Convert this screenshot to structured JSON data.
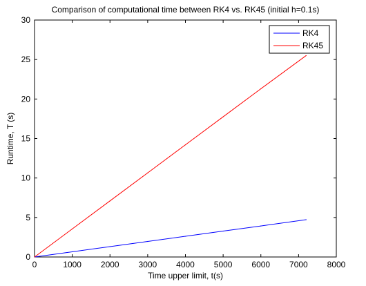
{
  "chart_data": {
    "type": "line",
    "title": "Comparison of computational time between RK4 vs. RK45 (initial h=0.1s)",
    "xlabel": "Time upper limit, t(s)",
    "ylabel": "Runtime, T (s)",
    "xlim": [
      0,
      8000
    ],
    "ylim": [
      0,
      30
    ],
    "xticks": [
      0,
      1000,
      2000,
      3000,
      4000,
      5000,
      6000,
      7000,
      8000
    ],
    "yticks": [
      0,
      5,
      10,
      15,
      20,
      25,
      30
    ],
    "grid": false,
    "legend_position": "top-right",
    "series": [
      {
        "name": "RK4",
        "color": "#0000ff",
        "x": [
          0,
          1000,
          2000,
          3000,
          4000,
          5000,
          6000,
          7200
        ],
        "y": [
          0,
          0.66,
          1.31,
          1.97,
          2.62,
          3.28,
          3.93,
          4.72
        ]
      },
      {
        "name": "RK45",
        "color": "#ff0000",
        "x": [
          0,
          1000,
          2000,
          3000,
          4000,
          5000,
          6000,
          7200
        ],
        "y": [
          0,
          3.55,
          7.1,
          10.65,
          14.2,
          17.75,
          21.3,
          25.5
        ]
      }
    ]
  }
}
